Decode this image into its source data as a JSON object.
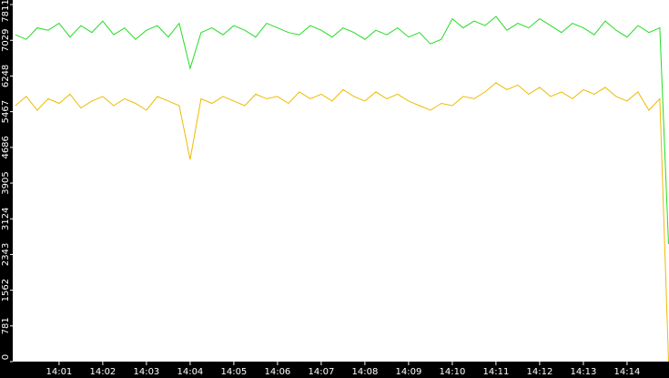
{
  "chart_data": {
    "type": "line",
    "x": [
      0,
      0.25,
      0.5,
      0.75,
      1,
      1.25,
      1.5,
      1.75,
      2,
      2.25,
      2.5,
      2.75,
      3,
      3.25,
      3.5,
      3.75,
      4,
      4.25,
      4.5,
      4.75,
      5,
      5.25,
      5.5,
      5.75,
      6,
      6.25,
      6.5,
      6.75,
      7,
      7.25,
      7.5,
      7.75,
      8,
      8.25,
      8.5,
      8.75,
      9,
      9.25,
      9.5,
      9.75,
      10,
      10.25,
      10.5,
      10.75,
      11,
      11.25,
      11.5,
      11.75,
      12,
      12.25,
      12.5,
      12.75,
      13,
      13.25,
      13.5,
      13.75,
      14,
      14.25,
      14.5,
      14.75,
      14.95
    ],
    "series": [
      {
        "color": "#22dd22",
        "values": [
          7150,
          7050,
          7300,
          7250,
          7400,
          7100,
          7350,
          7200,
          7450,
          7150,
          7300,
          7050,
          7250,
          7350,
          7100,
          7400,
          6416,
          7200,
          7300,
          7150,
          7350,
          7250,
          7100,
          7400,
          7300,
          7200,
          7150,
          7350,
          7250,
          7100,
          7300,
          7200,
          7050,
          7250,
          7150,
          7300,
          7100,
          7200,
          6950,
          7050,
          7500,
          7300,
          7450,
          7350,
          7550,
          7250,
          7400,
          7300,
          7500,
          7350,
          7200,
          7400,
          7300,
          7150,
          7450,
          7250,
          7100,
          7350,
          7200,
          7300,
          2570
        ]
      },
      {
        "color": "#eebb00",
        "values": [
          5600,
          5800,
          5500,
          5750,
          5650,
          5850,
          5550,
          5700,
          5800,
          5600,
          5750,
          5650,
          5500,
          5800,
          5700,
          5600,
          4424,
          5750,
          5650,
          5800,
          5700,
          5600,
          5850,
          5750,
          5800,
          5650,
          5900,
          5750,
          5850,
          5700,
          5950,
          5800,
          5700,
          5900,
          5750,
          5850,
          5700,
          5600,
          5500,
          5650,
          5600,
          5800,
          5750,
          5900,
          6100,
          5950,
          6050,
          5850,
          6000,
          5800,
          5900,
          5750,
          5950,
          5850,
          6000,
          5800,
          5700,
          5900,
          5500,
          5750,
          0
        ]
      }
    ],
    "xlim": [
      -0.06,
      14.96
    ],
    "xticks": [
      {
        "value": 1,
        "label": "14:01"
      },
      {
        "value": 2,
        "label": "14:02"
      },
      {
        "value": 3,
        "label": "14:03"
      },
      {
        "value": 4,
        "label": "14:04"
      },
      {
        "value": 5,
        "label": "14:05"
      },
      {
        "value": 6,
        "label": "14:06"
      },
      {
        "value": 7,
        "label": "14:07"
      },
      {
        "value": 8,
        "label": "14:08"
      },
      {
        "value": 9,
        "label": "14:09"
      },
      {
        "value": 10,
        "label": "14:10"
      },
      {
        "value": 11,
        "label": "14:11"
      },
      {
        "value": 12,
        "label": "14:12"
      },
      {
        "value": 13,
        "label": "14:13"
      },
      {
        "value": 14,
        "label": "14:14"
      }
    ],
    "ylim": [
      0,
      7811
    ],
    "yticks": [
      0,
      781,
      1562,
      2343,
      3124,
      3905,
      4686,
      5467,
      6248,
      7029,
      7811
    ],
    "grid": false
  }
}
